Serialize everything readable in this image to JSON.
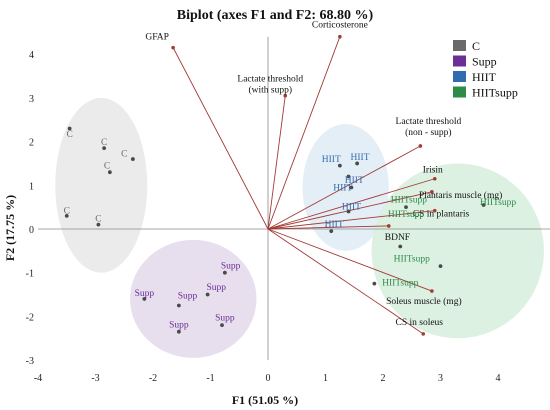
{
  "chart_data": {
    "type": "scatter",
    "title": "Biplot (axes F1 and F2: 68.80 %)",
    "xlabel": "F1 (51.05 %)",
    "ylabel": "F2 (17.75 %)",
    "xlim": [
      -4,
      5
    ],
    "ylim": [
      -3,
      4.4
    ],
    "xticks": [
      -4,
      -3,
      -2,
      -1,
      0,
      1,
      2,
      3,
      4
    ],
    "yticks": [
      -3,
      -2,
      -1,
      0,
      1,
      2,
      3,
      4
    ],
    "legend_position": "top-right",
    "vectors": [
      {
        "label": "GFAP",
        "x": -1.65,
        "y": 4.15
      },
      {
        "label": "Corticosterone",
        "x": 1.25,
        "y": 4.4
      },
      {
        "label": "Lactate threshold\n(with supp)",
        "x": 0.3,
        "y": 3.05
      },
      {
        "label": "Lactate threshold\n(non - supp)",
        "x": 2.65,
        "y": 1.9
      },
      {
        "label": "Irisin",
        "x": 2.9,
        "y": 1.15
      },
      {
        "label": "Plantaris muscle (mg)",
        "x": 2.85,
        "y": 0.85
      },
      {
        "label": "CS in plantaris",
        "x": 2.9,
        "y": 0.42
      },
      {
        "label": "BDNF",
        "x": 2.1,
        "y": 0.07
      },
      {
        "label": "Soleus muscle (mg)",
        "x": 2.85,
        "y": -1.42
      },
      {
        "label": "CS in soleus",
        "x": 2.7,
        "y": -2.4
      }
    ],
    "series": [
      {
        "name": "C",
        "color": "#6a6a6a",
        "ellipse_color": "#e9e9e9",
        "ellipse": {
          "cx": -2.9,
          "cy": 1.0,
          "rx": 0.8,
          "ry": 2.0
        },
        "points": [
          {
            "x": -3.45,
            "y": 2.3
          },
          {
            "x": -2.85,
            "y": 1.85
          },
          {
            "x": -2.35,
            "y": 1.6
          },
          {
            "x": -2.75,
            "y": 1.3
          },
          {
            "x": -3.5,
            "y": 0.3
          },
          {
            "x": -2.95,
            "y": 0.1
          }
        ],
        "labels": [
          {
            "text": "C",
            "x": -3.45,
            "y": 2.17
          },
          {
            "text": "C",
            "x": -2.85,
            "y": 1.99
          },
          {
            "text": "C",
            "x": -2.5,
            "y": 1.73
          },
          {
            "text": "C",
            "x": -2.8,
            "y": 1.45
          },
          {
            "text": "C",
            "x": -3.5,
            "y": 0.42
          },
          {
            "text": "C",
            "x": -2.95,
            "y": 0.24
          }
        ]
      },
      {
        "name": "Supp",
        "color": "#6b2f96",
        "ellipse_color": "#e4dcec",
        "ellipse": {
          "cx": -1.3,
          "cy": -1.6,
          "rx": 1.1,
          "ry": 1.35
        },
        "points": [
          {
            "x": -2.15,
            "y": -1.6
          },
          {
            "x": -1.55,
            "y": -1.75
          },
          {
            "x": -1.05,
            "y": -1.5
          },
          {
            "x": -0.75,
            "y": -1.0
          },
          {
            "x": -0.8,
            "y": -2.2
          },
          {
            "x": -1.55,
            "y": -2.35
          }
        ],
        "labels": [
          {
            "text": "Supp",
            "x": -2.15,
            "y": -1.47
          },
          {
            "text": "Supp",
            "x": -1.4,
            "y": -1.52
          },
          {
            "text": "Supp",
            "x": -0.9,
            "y": -1.33
          },
          {
            "text": "Supp",
            "x": -0.65,
            "y": -0.83
          },
          {
            "text": "Supp",
            "x": -0.75,
            "y": -2.03
          },
          {
            "text": "Supp",
            "x": -1.55,
            "y": -2.18
          }
        ]
      },
      {
        "name": "HIIT",
        "color": "#2f6db0",
        "ellipse_color": "#e1ecf6",
        "ellipse": {
          "cx": 1.35,
          "cy": 0.95,
          "rx": 0.75,
          "ry": 1.45
        },
        "points": [
          {
            "x": 1.25,
            "y": 1.45
          },
          {
            "x": 1.55,
            "y": 1.5
          },
          {
            "x": 1.4,
            "y": 1.2
          },
          {
            "x": 1.45,
            "y": 0.95
          },
          {
            "x": 1.4,
            "y": 0.4
          },
          {
            "x": 1.1,
            "y": -0.05
          }
        ],
        "labels": [
          {
            "text": "HIIT",
            "x": 1.1,
            "y": 1.6
          },
          {
            "text": "HIIT",
            "x": 1.6,
            "y": 1.65
          },
          {
            "text": "HIIT",
            "x": 1.5,
            "y": 1.12
          },
          {
            "text": "HIIT",
            "x": 1.3,
            "y": 0.95
          },
          {
            "text": "HIIT",
            "x": 1.45,
            "y": 0.52
          },
          {
            "text": "HIIT",
            "x": 1.15,
            "y": 0.12
          }
        ]
      },
      {
        "name": "HIITsupp",
        "color": "#2e8b4a",
        "ellipse_color": "#d9efe0",
        "ellipse": {
          "cx": 3.3,
          "cy": -0.5,
          "rx": 1.5,
          "ry": 2.0
        },
        "points": [
          {
            "x": 2.4,
            "y": 0.5
          },
          {
            "x": 3.75,
            "y": 0.55
          },
          {
            "x": 2.3,
            "y": -0.4
          },
          {
            "x": 3.0,
            "y": -0.85
          },
          {
            "x": 1.85,
            "y": -1.25
          }
        ],
        "labels": [
          {
            "text": "HIITsupp",
            "x": 2.45,
            "y": 0.67
          },
          {
            "text": "HIITsupp",
            "x": 4.0,
            "y": 0.62
          },
          {
            "text": "HIITsupp",
            "x": 2.4,
            "y": 0.34
          },
          {
            "text": "HIITsupp",
            "x": 2.5,
            "y": -0.67
          },
          {
            "text": "HIITsupp",
            "x": 2.3,
            "y": -1.22
          }
        ]
      }
    ]
  }
}
